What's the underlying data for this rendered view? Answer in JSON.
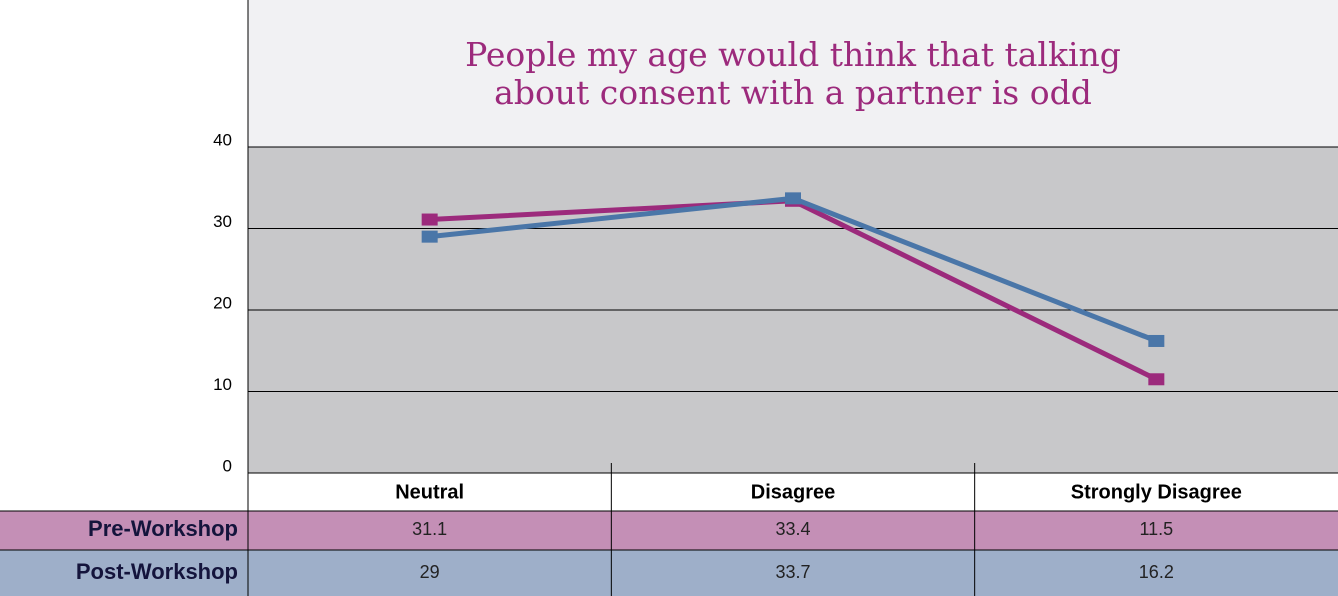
{
  "chart_data": {
    "type": "line",
    "title": "People my age would think that talking about consent with a partner is odd",
    "categories": [
      "Neutral",
      "Disagree",
      "Strongly Disagree"
    ],
    "series": [
      {
        "name": "Pre-Workshop",
        "color": "#9c2a7c",
        "values": [
          31.1,
          33.4,
          11.5
        ]
      },
      {
        "name": "Post-Workshop",
        "color": "#4a76a8",
        "values": [
          29,
          33.7,
          16.2
        ]
      }
    ],
    "ylim": [
      0,
      40
    ],
    "yticks": [
      0,
      10,
      20,
      30,
      40
    ],
    "grid": true
  }
}
